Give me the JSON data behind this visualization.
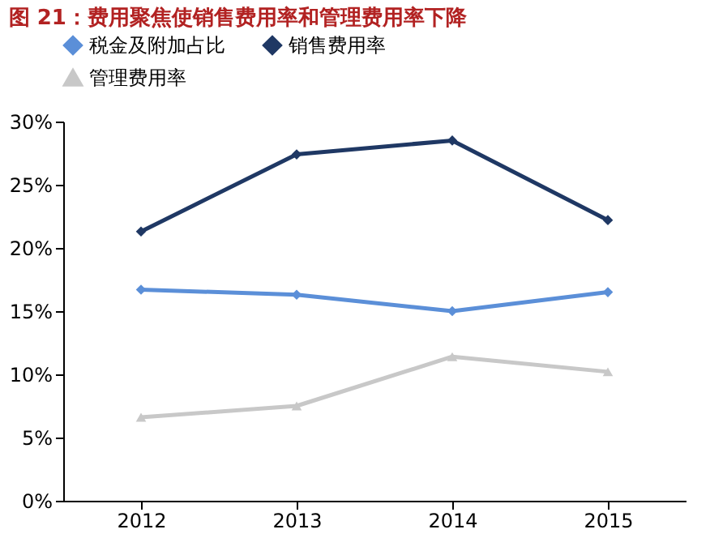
{
  "chart_data": {
    "type": "line",
    "title": "图 21：费用聚焦使销售费用率和管理费用率下降",
    "categories": [
      "2012",
      "2013",
      "2014",
      "2015"
    ],
    "series": [
      {
        "name": "税金及附加占比",
        "color": "#5b8fd8",
        "values": [
          16.7,
          16.3,
          15.0,
          16.5
        ]
      },
      {
        "name": "销售费用率",
        "color": "#1f3864",
        "values": [
          21.3,
          27.4,
          28.5,
          22.2
        ]
      },
      {
        "name": "管理费用率",
        "color": "#c8c8c8",
        "values": [
          6.6,
          7.5,
          11.4,
          10.2
        ],
        "marker": "triangle"
      }
    ],
    "ylim": [
      0,
      30
    ],
    "yticks": [
      {
        "value": 0,
        "label": "0%"
      },
      {
        "value": 5,
        "label": "5%"
      },
      {
        "value": 10,
        "label": "10%"
      },
      {
        "value": 15,
        "label": "15%"
      },
      {
        "value": 20,
        "label": "20%"
      },
      {
        "value": 25,
        "label": "25%"
      },
      {
        "value": 30,
        "label": "30%"
      }
    ],
    "marker": "diamond",
    "line_style": "solid",
    "legend": "top",
    "grid": false
  }
}
